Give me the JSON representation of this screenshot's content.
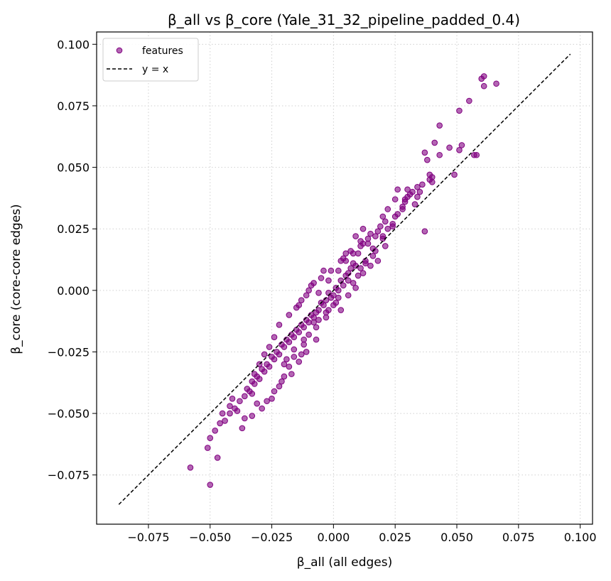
{
  "chart_data": {
    "type": "scatter",
    "title": "β_all vs β_core (Yale_31_32_pipeline_padded_0.4)",
    "xlabel": "β_all (all edges)",
    "ylabel": "β_core (core-core edges)",
    "xlim": [
      -0.096,
      0.105
    ],
    "ylim": [
      -0.095,
      0.105
    ],
    "xticks": [
      -0.075,
      -0.05,
      -0.025,
      0.0,
      0.025,
      0.05,
      0.075,
      0.1
    ],
    "xtick_labels": [
      "−0.075",
      "−0.050",
      "−0.025",
      "0.000",
      "0.025",
      "0.050",
      "0.075",
      "0.100"
    ],
    "yticks": [
      -0.075,
      -0.05,
      -0.025,
      0.0,
      0.025,
      0.05,
      0.075,
      0.1
    ],
    "ytick_labels": [
      "−0.075",
      "−0.050",
      "−0.025",
      "0.000",
      "0.025",
      "0.050",
      "0.075",
      "0.100"
    ],
    "grid": true,
    "legend_position": "top-left",
    "series": [
      {
        "name": "features",
        "kind": "scatter",
        "color": "#800080",
        "x": [
          0.061,
          0.066,
          0.06,
          0.061,
          0.055,
          0.051,
          0.043,
          0.041,
          0.047,
          0.052,
          0.051,
          0.058,
          0.057,
          0.049,
          0.037,
          0.038,
          0.039,
          0.04,
          0.036,
          0.039,
          0.04,
          0.035,
          0.03,
          0.032,
          0.034,
          0.033,
          0.029,
          0.026,
          0.028,
          0.025,
          0.022,
          0.021,
          0.019,
          0.022,
          0.02,
          0.024,
          0.018,
          0.017,
          0.015,
          0.014,
          0.012,
          0.011,
          0.01,
          0.016,
          0.013,
          0.009,
          0.007,
          0.006,
          0.008,
          0.005,
          0.003,
          0.004,
          0.002,
          0.001,
          0.0,
          -0.001,
          -0.002,
          -0.003,
          -0.004,
          -0.005,
          -0.006,
          -0.007,
          -0.008,
          -0.009,
          -0.01,
          -0.011,
          -0.012,
          -0.013,
          -0.014,
          -0.015,
          -0.016,
          -0.017,
          -0.018,
          -0.019,
          -0.02,
          -0.021,
          -0.022,
          -0.023,
          -0.024,
          -0.025,
          -0.026,
          -0.027,
          -0.028,
          -0.029,
          -0.03,
          -0.031,
          -0.032,
          -0.033,
          -0.034,
          -0.035,
          -0.036,
          -0.038,
          -0.04,
          -0.042,
          -0.044,
          -0.046,
          -0.048,
          -0.05,
          -0.051,
          -0.058,
          -0.05,
          0.037,
          0.009,
          0.012,
          0.005,
          -0.004,
          0.003,
          -0.014,
          -0.018,
          -0.011,
          -0.008,
          0.014,
          0.016,
          -0.012,
          -0.016,
          -0.02,
          -0.013,
          -0.007,
          -0.002,
          0.002,
          0.006,
          0.01,
          0.02,
          0.024,
          0.026,
          0.029,
          0.031,
          0.034,
          -0.024,
          -0.026,
          -0.022,
          -0.028,
          -0.03,
          -0.032,
          -0.015,
          -0.009,
          -0.005,
          -0.001,
          0.004,
          0.007,
          -0.01,
          -0.006,
          -0.003,
          0.001,
          0.008,
          0.011,
          0.013,
          -0.019,
          -0.017,
          -0.021,
          -0.024,
          -0.027,
          -0.029,
          -0.033,
          -0.036,
          -0.039,
          -0.042,
          -0.045,
          -0.047,
          -0.011,
          -0.014,
          -0.018,
          -0.02,
          -0.022,
          -0.025,
          0.0,
          -0.003,
          0.003,
          0.006,
          0.009,
          0.015,
          0.018,
          0.021,
          0.017,
          0.012,
          -0.007,
          -0.012,
          -0.016,
          -0.008,
          0.02,
          0.025,
          0.028,
          0.03,
          -0.013,
          -0.01,
          -0.006,
          -0.002,
          0.002,
          0.005,
          0.008,
          0.011,
          -0.033,
          -0.031,
          -0.037,
          -0.041,
          0.043
        ],
        "y": [
          0.087,
          0.084,
          0.086,
          0.083,
          0.077,
          0.073,
          0.067,
          0.06,
          0.058,
          0.059,
          0.057,
          0.055,
          0.055,
          0.047,
          0.056,
          0.053,
          0.047,
          0.046,
          0.043,
          0.045,
          0.044,
          0.04,
          0.041,
          0.04,
          0.038,
          0.035,
          0.037,
          0.041,
          0.033,
          0.03,
          0.033,
          0.028,
          0.026,
          0.025,
          0.022,
          0.027,
          0.024,
          0.022,
          0.023,
          0.021,
          0.019,
          0.018,
          0.015,
          0.017,
          0.012,
          0.01,
          0.009,
          0.007,
          0.011,
          0.006,
          0.004,
          0.002,
          0.0,
          0.001,
          -0.002,
          -0.003,
          -0.001,
          -0.004,
          -0.006,
          -0.005,
          -0.008,
          -0.009,
          -0.011,
          -0.01,
          -0.013,
          -0.012,
          -0.015,
          -0.014,
          -0.017,
          -0.016,
          -0.019,
          -0.018,
          -0.021,
          -0.02,
          -0.023,
          -0.022,
          -0.026,
          -0.025,
          -0.028,
          -0.027,
          -0.031,
          -0.03,
          -0.033,
          -0.032,
          -0.036,
          -0.035,
          -0.038,
          -0.037,
          -0.041,
          -0.04,
          -0.043,
          -0.045,
          -0.048,
          -0.05,
          -0.053,
          -0.054,
          -0.057,
          -0.06,
          -0.064,
          -0.072,
          -0.079,
          0.024,
          0.022,
          0.025,
          0.015,
          0.008,
          0.012,
          -0.006,
          -0.01,
          -0.002,
          0.003,
          0.019,
          0.014,
          -0.02,
          -0.024,
          -0.03,
          -0.026,
          -0.015,
          -0.008,
          -0.003,
          0.004,
          0.006,
          0.021,
          0.026,
          0.031,
          0.036,
          0.039,
          0.042,
          -0.019,
          -0.023,
          -0.014,
          -0.026,
          -0.03,
          -0.034,
          -0.007,
          0.002,
          0.005,
          0.008,
          0.013,
          0.016,
          -0.018,
          -0.012,
          -0.009,
          -0.005,
          0.003,
          0.009,
          0.011,
          -0.028,
          -0.034,
          -0.037,
          -0.041,
          -0.045,
          -0.048,
          -0.051,
          -0.052,
          -0.049,
          -0.047,
          -0.05,
          -0.068,
          -0.025,
          -0.029,
          -0.031,
          -0.035,
          -0.039,
          -0.044,
          -0.006,
          -0.011,
          -0.008,
          -0.002,
          0.001,
          0.01,
          0.012,
          0.018,
          0.016,
          0.007,
          -0.02,
          -0.022,
          -0.027,
          -0.013,
          0.03,
          0.037,
          0.034,
          0.038,
          -0.004,
          0.0,
          -0.001,
          0.004,
          0.008,
          0.012,
          0.015,
          0.02,
          -0.042,
          -0.046,
          -0.056,
          -0.044,
          0.055
        ]
      },
      {
        "name": "y = x",
        "kind": "line",
        "color": "#000000",
        "x": [
          -0.087,
          0.096
        ],
        "y": [
          -0.087,
          0.096
        ]
      }
    ]
  }
}
